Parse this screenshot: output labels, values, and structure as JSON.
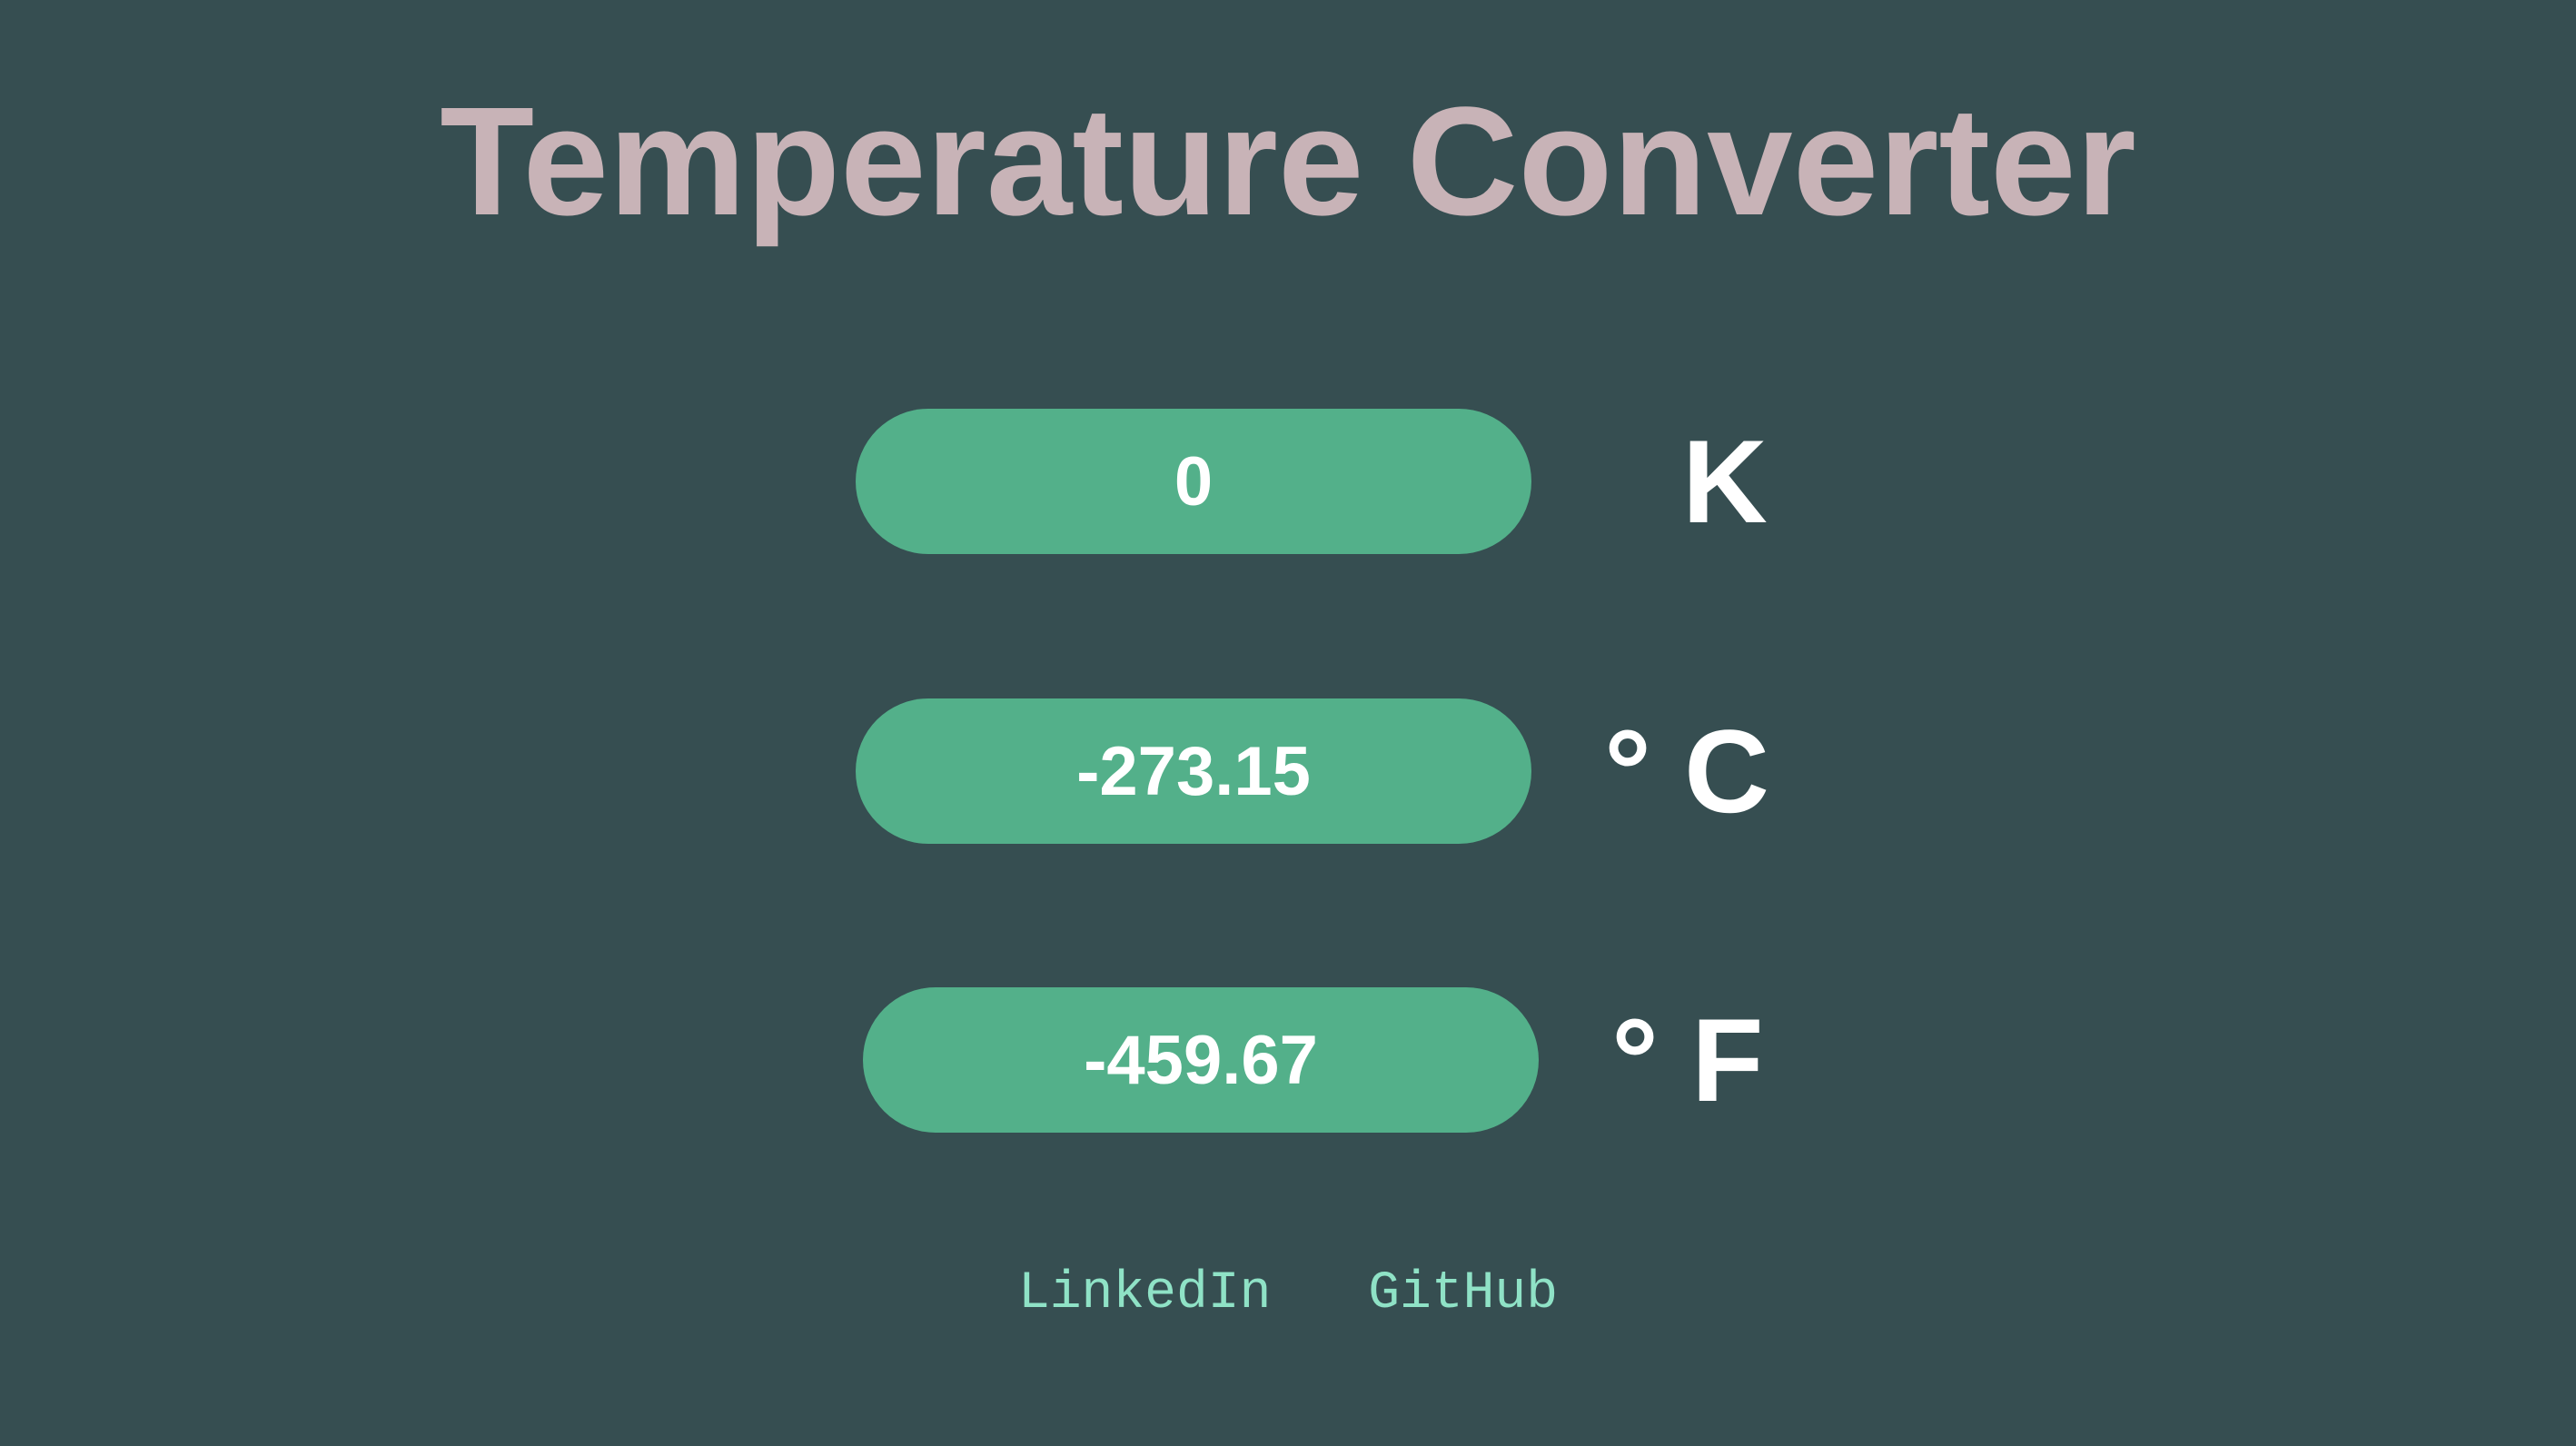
{
  "header": {
    "title": "Temperature Converter"
  },
  "converter": {
    "kelvin": {
      "value": "0",
      "unit": "K"
    },
    "celsius": {
      "value": "-273.15",
      "unit": "° C"
    },
    "fahrenheit": {
      "value": "-459.67",
      "unit": "° F"
    }
  },
  "footer": {
    "links": [
      {
        "label": "LinkedIn"
      },
      {
        "label": "GitHub"
      }
    ]
  },
  "colors": {
    "background": "#364e51",
    "title": "#c8b3b7",
    "input_fill": "#53b08a",
    "link": "#8fe2c6"
  }
}
